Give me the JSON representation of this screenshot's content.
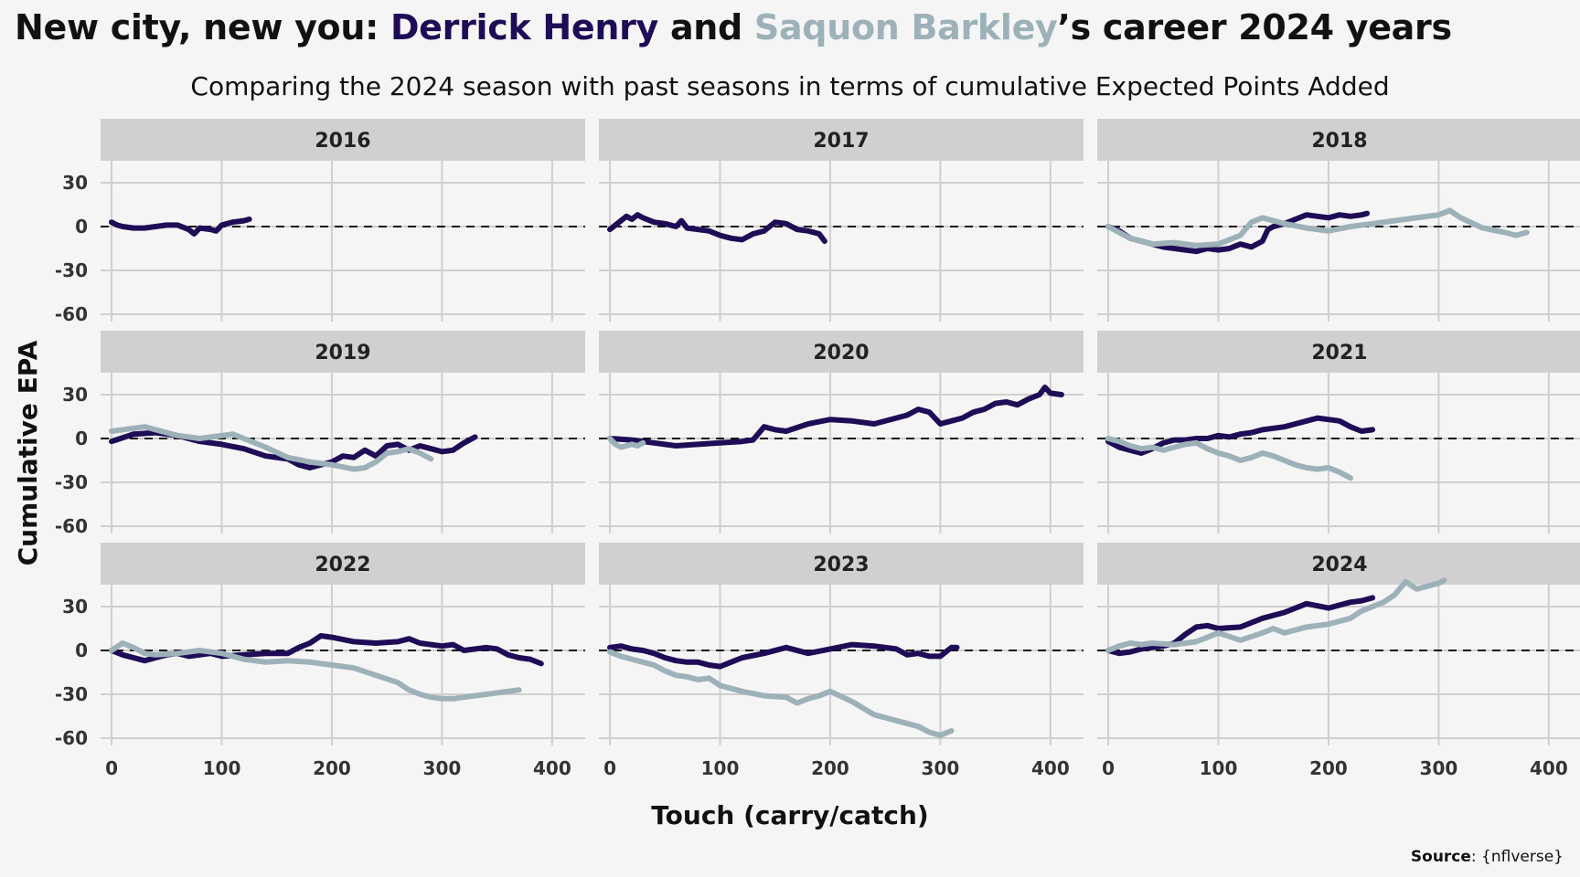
{
  "header": {
    "title_part1": "New city, new you: ",
    "name1": "Derrick Henry",
    "title_part2": " and ",
    "name2": "Saquon Barkley",
    "title_part3": "’s career 2024 years",
    "subtitle": "Comparing the 2024 season with past seasons in terms of cumulative Expected Points Added"
  },
  "source": {
    "label": "Source",
    "text": ": {nflverse}"
  },
  "colors": {
    "henry": "#1e0c56",
    "barkley": "#9db1b9",
    "strip": "#d0d0d0",
    "grid": "#cfcfcf",
    "panel_bg": "#f5f5f5"
  },
  "chart_data": {
    "type": "line",
    "xlabel": "Touch (carry/catch)",
    "ylabel": "Cumulative EPA",
    "xlim": [
      -10,
      430
    ],
    "ylim": [
      -65,
      45
    ],
    "xticks": [
      0,
      100,
      200,
      300,
      400
    ],
    "yticks": [
      30,
      0,
      -30,
      -60
    ],
    "grid": true,
    "reference_line": 0,
    "legend": "none",
    "panels": [
      {
        "year": "2016",
        "series": [
          {
            "name": "Derrick Henry",
            "color": "#1e0c56",
            "x": [
              0,
              5,
              10,
              20,
              30,
              40,
              50,
              60,
              70,
              75,
              80,
              90,
              95,
              100,
              110,
              120,
              125
            ],
            "y": [
              3,
              1,
              0,
              -1,
              -1,
              0,
              1,
              1,
              -2,
              -5,
              -1,
              -2,
              -3,
              1,
              3,
              4,
              5
            ]
          }
        ]
      },
      {
        "year": "2017",
        "series": [
          {
            "name": "Derrick Henry",
            "color": "#1e0c56",
            "x": [
              0,
              5,
              10,
              15,
              20,
              25,
              30,
              40,
              50,
              60,
              65,
              70,
              80,
              90,
              100,
              110,
              120,
              130,
              140,
              150,
              160,
              170,
              180,
              190,
              195
            ],
            "y": [
              -2,
              1,
              4,
              7,
              5,
              8,
              6,
              3,
              2,
              0,
              4,
              -1,
              -2,
              -3,
              -6,
              -8,
              -9,
              -5,
              -3,
              3,
              2,
              -2,
              -3,
              -5,
              -10
            ]
          }
        ]
      },
      {
        "year": "2018",
        "series": [
          {
            "name": "Derrick Henry",
            "color": "#1e0c56",
            "x": [
              0,
              10,
              20,
              30,
              40,
              50,
              60,
              70,
              80,
              90,
              100,
              110,
              120,
              130,
              140,
              145,
              150,
              160,
              170,
              180,
              190,
              200,
              210,
              220,
              230,
              235
            ],
            "y": [
              0,
              -3,
              -8,
              -10,
              -12,
              -14,
              -15,
              -16,
              -17,
              -15,
              -16,
              -15,
              -12,
              -14,
              -10,
              -2,
              0,
              2,
              5,
              8,
              7,
              6,
              8,
              7,
              8,
              9
            ]
          },
          {
            "name": "Saquon Barkley",
            "color": "#9db1b9",
            "x": [
              0,
              20,
              40,
              60,
              80,
              100,
              120,
              130,
              140,
              160,
              180,
              200,
              220,
              240,
              260,
              280,
              300,
              310,
              320,
              340,
              360,
              370,
              380
            ],
            "y": [
              0,
              -8,
              -12,
              -11,
              -13,
              -12,
              -6,
              3,
              6,
              2,
              -1,
              -3,
              0,
              2,
              4,
              6,
              8,
              11,
              6,
              -1,
              -4,
              -6,
              -4
            ]
          }
        ]
      },
      {
        "year": "2019",
        "series": [
          {
            "name": "Derrick Henry",
            "color": "#1e0c56",
            "x": [
              0,
              20,
              40,
              60,
              80,
              100,
              120,
              140,
              160,
              170,
              180,
              200,
              210,
              220,
              230,
              240,
              250,
              260,
              270,
              280,
              290,
              300,
              310,
              320,
              330
            ],
            "y": [
              -2,
              3,
              4,
              2,
              -2,
              -4,
              -7,
              -12,
              -14,
              -18,
              -20,
              -16,
              -12,
              -13,
              -8,
              -12,
              -5,
              -4,
              -8,
              -5,
              -7,
              -9,
              -8,
              -3,
              1
            ]
          },
          {
            "name": "Saquon Barkley",
            "color": "#9db1b9",
            "x": [
              0,
              10,
              20,
              30,
              40,
              50,
              60,
              70,
              80,
              90,
              100,
              110,
              120,
              140,
              160,
              180,
              200,
              220,
              230,
              240,
              250,
              260,
              270,
              280,
              290
            ],
            "y": [
              5,
              6,
              7,
              8,
              6,
              4,
              2,
              1,
              0,
              1,
              2,
              3,
              0,
              -6,
              -13,
              -16,
              -18,
              -21,
              -20,
              -16,
              -10,
              -9,
              -7,
              -10,
              -14
            ]
          }
        ]
      },
      {
        "year": "2020",
        "series": [
          {
            "name": "Derrick Henry",
            "color": "#1e0c56",
            "x": [
              0,
              20,
              40,
              60,
              80,
              100,
              120,
              130,
              140,
              150,
              160,
              180,
              200,
              220,
              240,
              260,
              270,
              280,
              290,
              300,
              310,
              320,
              330,
              340,
              350,
              360,
              370,
              380,
              390,
              395,
              400,
              410
            ],
            "y": [
              0,
              -1,
              -3,
              -5,
              -4,
              -3,
              -2,
              -1,
              8,
              6,
              5,
              10,
              13,
              12,
              10,
              14,
              16,
              20,
              18,
              10,
              12,
              14,
              18,
              20,
              24,
              25,
              23,
              27,
              30,
              35,
              31,
              30
            ]
          },
          {
            "name": "Saquon Barkley",
            "color": "#9db1b9",
            "x": [
              0,
              5,
              10,
              15,
              20,
              25,
              30
            ],
            "y": [
              0,
              -4,
              -6,
              -5,
              -4,
              -5,
              -3
            ]
          }
        ]
      },
      {
        "year": "2021",
        "series": [
          {
            "name": "Derrick Henry",
            "color": "#1e0c56",
            "x": [
              0,
              10,
              20,
              30,
              40,
              50,
              60,
              70,
              80,
              90,
              100,
              110,
              120,
              130,
              140,
              150,
              160,
              170,
              180,
              190,
              200,
              210,
              220,
              230,
              240
            ],
            "y": [
              -2,
              -6,
              -8,
              -10,
              -7,
              -3,
              -1,
              -1,
              0,
              0,
              2,
              1,
              3,
              4,
              6,
              7,
              8,
              10,
              12,
              14,
              13,
              12,
              8,
              5,
              6
            ]
          },
          {
            "name": "Saquon Barkley",
            "color": "#9db1b9",
            "x": [
              0,
              10,
              20,
              30,
              40,
              50,
              60,
              70,
              80,
              90,
              100,
              110,
              120,
              130,
              140,
              150,
              160,
              170,
              180,
              190,
              200,
              210,
              220
            ],
            "y": [
              0,
              -2,
              -5,
              -7,
              -6,
              -8,
              -6,
              -4,
              -3,
              -7,
              -10,
              -12,
              -15,
              -13,
              -10,
              -12,
              -15,
              -18,
              -20,
              -21,
              -20,
              -23,
              -27
            ]
          }
        ]
      },
      {
        "year": "2022",
        "series": [
          {
            "name": "Derrick Henry",
            "color": "#1e0c56",
            "x": [
              0,
              10,
              20,
              30,
              40,
              50,
              60,
              70,
              80,
              90,
              100,
              120,
              140,
              160,
              170,
              180,
              190,
              200,
              220,
              240,
              260,
              270,
              280,
              300,
              310,
              320,
              340,
              350,
              360,
              370,
              380,
              390
            ],
            "y": [
              0,
              -3,
              -5,
              -7,
              -5,
              -3,
              -2,
              -4,
              -3,
              -2,
              -4,
              -3,
              -2,
              -2,
              2,
              5,
              10,
              9,
              6,
              5,
              6,
              8,
              5,
              3,
              4,
              0,
              2,
              1,
              -3,
              -5,
              -6,
              -9
            ]
          },
          {
            "name": "Saquon Barkley",
            "color": "#9db1b9",
            "x": [
              0,
              10,
              20,
              30,
              40,
              60,
              80,
              100,
              120,
              140,
              160,
              180,
              200,
              220,
              240,
              260,
              270,
              280,
              290,
              300,
              310,
              320,
              340,
              360,
              370
            ],
            "y": [
              0,
              5,
              2,
              -2,
              -3,
              -2,
              0,
              -2,
              -6,
              -8,
              -7,
              -8,
              -10,
              -12,
              -17,
              -22,
              -27,
              -30,
              -32,
              -33,
              -33,
              -32,
              -30,
              -28,
              -27
            ]
          }
        ]
      },
      {
        "year": "2023",
        "series": [
          {
            "name": "Derrick Henry",
            "color": "#1e0c56",
            "x": [
              0,
              10,
              20,
              30,
              40,
              50,
              60,
              70,
              80,
              90,
              100,
              110,
              120,
              140,
              160,
              180,
              200,
              220,
              240,
              260,
              270,
              280,
              290,
              300,
              310,
              315
            ],
            "y": [
              2,
              3,
              1,
              0,
              -2,
              -5,
              -7,
              -8,
              -8,
              -10,
              -11,
              -8,
              -5,
              -2,
              2,
              -2,
              1,
              4,
              3,
              1,
              -3,
              -2,
              -4,
              -4,
              2,
              2
            ]
          },
          {
            "name": "Saquon Barkley",
            "color": "#9db1b9",
            "x": [
              0,
              10,
              20,
              30,
              40,
              50,
              60,
              70,
              80,
              90,
              100,
              120,
              140,
              160,
              170,
              180,
              190,
              200,
              220,
              240,
              260,
              280,
              290,
              300,
              310
            ],
            "y": [
              -1,
              -4,
              -6,
              -8,
              -10,
              -14,
              -17,
              -18,
              -20,
              -19,
              -24,
              -28,
              -31,
              -32,
              -36,
              -33,
              -31,
              -28,
              -35,
              -44,
              -48,
              -52,
              -56,
              -58,
              -55
            ]
          }
        ]
      },
      {
        "year": "2024",
        "series": [
          {
            "name": "Derrick Henry",
            "color": "#1e0c56",
            "x": [
              0,
              10,
              20,
              30,
              40,
              50,
              60,
              70,
              80,
              90,
              100,
              120,
              140,
              160,
              180,
              200,
              210,
              220,
              230,
              240
            ],
            "y": [
              0,
              -2,
              -1,
              1,
              2,
              3,
              5,
              11,
              16,
              17,
              15,
              16,
              22,
              26,
              32,
              29,
              31,
              33,
              34,
              36
            ]
          },
          {
            "name": "Saquon Barkley",
            "color": "#9db1b9",
            "x": [
              0,
              10,
              20,
              30,
              40,
              60,
              80,
              100,
              120,
              140,
              150,
              160,
              180,
              200,
              210,
              220,
              230,
              240,
              250,
              260,
              270,
              280,
              290,
              300,
              305
            ],
            "y": [
              0,
              3,
              5,
              4,
              5,
              4,
              6,
              12,
              7,
              12,
              15,
              12,
              16,
              18,
              20,
              22,
              27,
              30,
              33,
              38,
              47,
              42,
              44,
              46,
              48
            ]
          }
        ]
      }
    ]
  }
}
